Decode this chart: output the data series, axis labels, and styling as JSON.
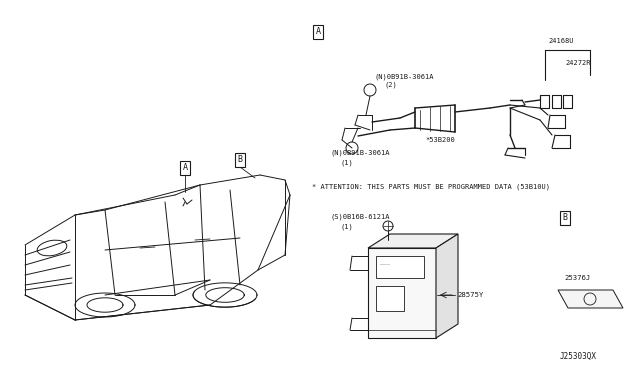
{
  "background_color": "#ffffff",
  "fig_width": 6.4,
  "fig_height": 3.72,
  "dpi": 100,
  "line_color": "#1a1a1a",
  "gray_color": "#888888",
  "light_gray": "#cccccc",
  "font_family": "monospace",
  "labels": {
    "box_A": "A",
    "box_B": "B",
    "part_24168U": "24168U",
    "part_24272R": "24272R",
    "part_53B200": "*53B200",
    "part_label1a": "(N)0B91B-3061A",
    "part_label1b": "(2)",
    "part_label2a": "(N)0B91B-3061A",
    "part_label2b": "(1)",
    "part_label3a": "(S)0B16B-6121A",
    "part_label3b": "(1)",
    "part_28575Y": "28575Y",
    "part_25376J": "25376J",
    "ref_code": "J25303QX",
    "attention": "* ATTENTION: THIS PARTS MUST BE PROGRAMMED DATA (53B10U)"
  }
}
